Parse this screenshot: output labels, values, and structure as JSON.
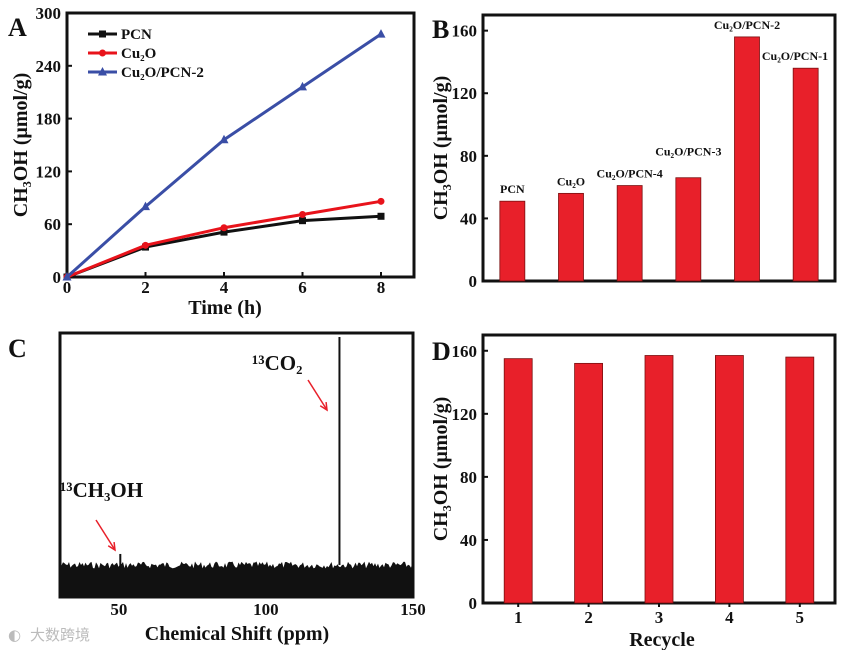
{
  "watermark": "大数跨境",
  "chart_data": [
    {
      "panel": "A",
      "type": "line",
      "xlabel": "Time (h)",
      "ylabel": "CH₃OH (μmol/g)",
      "xlim": [
        0,
        9
      ],
      "ylim": [
        0,
        300
      ],
      "xticks": [
        0,
        2,
        4,
        6,
        8
      ],
      "yticks": [
        0,
        60,
        120,
        180,
        240,
        300
      ],
      "legend_position": "top-left",
      "x": [
        0,
        2,
        4,
        6,
        8
      ],
      "series": [
        {
          "name": "PCN",
          "color": "#111111",
          "marker": "square",
          "values": [
            0,
            34,
            51,
            64,
            69
          ]
        },
        {
          "name": "Cu₂O",
          "color": "#e8131b",
          "marker": "circle",
          "values": [
            0,
            36,
            56,
            71,
            86
          ]
        },
        {
          "name": "Cu₂O/PCN-2",
          "color": "#3a4ea6",
          "marker": "triangle",
          "values": [
            0,
            80,
            156,
            216,
            276
          ]
        }
      ]
    },
    {
      "panel": "B",
      "type": "bar",
      "ylabel": "CH₃OH (μmol/g)",
      "ylim": [
        0,
        170
      ],
      "yticks": [
        0,
        40,
        80,
        120,
        160
      ],
      "color": "#e8202a",
      "categories": [
        "PCN",
        "Cu₂O",
        "Cu₂O/PCN-4",
        "Cu₂O/PCN-3",
        "Cu₂O/PCN-2",
        "Cu₂O/PCN-1"
      ],
      "values": [
        51,
        56,
        61,
        66,
        156,
        136
      ]
    },
    {
      "panel": "C",
      "type": "line",
      "xlabel": "Chemical Shift (ppm)",
      "xlim": [
        30,
        150
      ],
      "xticks": [
        50,
        100,
        150
      ],
      "peaks": [
        {
          "label": "¹³CH₃OH",
          "position": 50.5,
          "intensity": 0.04
        },
        {
          "label": "¹³CO₂",
          "position": 125,
          "intensity": 1.0
        }
      ],
      "annotation_color": "#e8202a"
    },
    {
      "panel": "D",
      "type": "bar",
      "xlabel": "Recycle",
      "ylabel": "CH₃OH (μmol/g)",
      "ylim": [
        0,
        170
      ],
      "yticks": [
        0,
        40,
        80,
        120,
        160
      ],
      "color": "#e8202a",
      "categories": [
        "1",
        "2",
        "3",
        "4",
        "5"
      ],
      "values": [
        155,
        152,
        157,
        157,
        156
      ]
    }
  ]
}
